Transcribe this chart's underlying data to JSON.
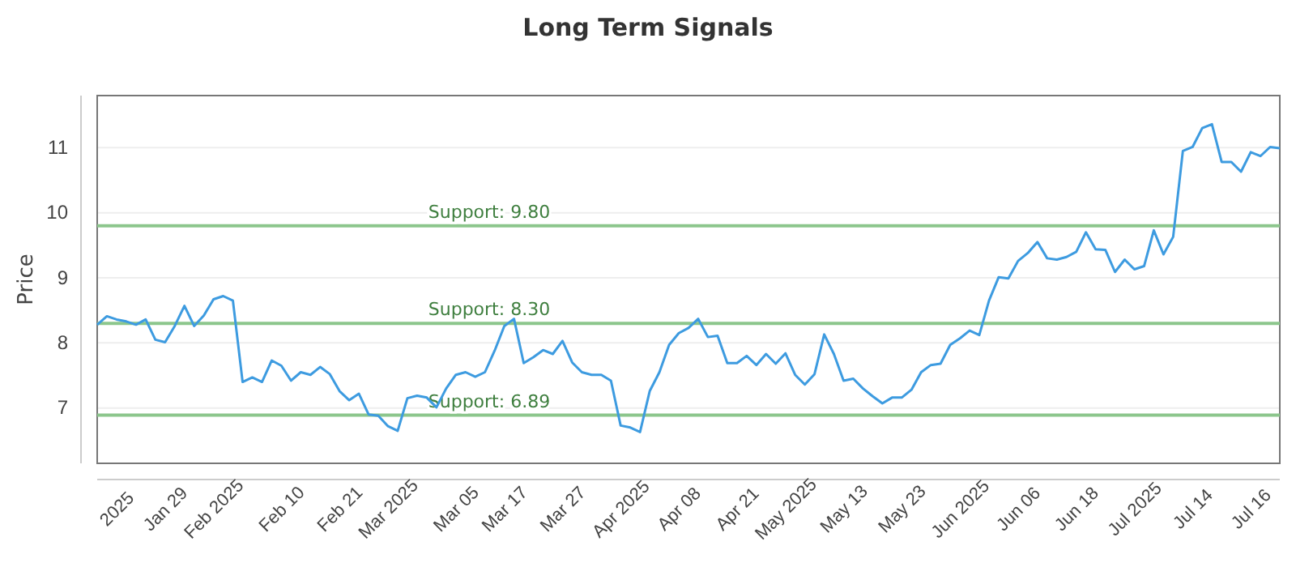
{
  "chart_data": {
    "type": "line",
    "title": "Long Term Signals",
    "ylabel": "Price",
    "categories": [
      null,
      null,
      "2025",
      null,
      null,
      null,
      null,
      "Jan 29",
      null,
      null,
      null,
      null,
      "Feb 2025",
      null,
      null,
      null,
      null,
      null,
      null,
      "Feb 10",
      null,
      null,
      null,
      null,
      null,
      "Feb 21",
      null,
      null,
      null,
      null,
      "Mar 2025",
      null,
      null,
      null,
      null,
      null,
      null,
      "Mar 05",
      null,
      null,
      null,
      null,
      "Mar 17",
      null,
      null,
      null,
      null,
      null,
      "Mar 27",
      null,
      null,
      null,
      null,
      null,
      "Apr 2025",
      null,
      null,
      null,
      null,
      null,
      "Apr 08",
      null,
      null,
      null,
      null,
      null,
      "Apr 21",
      null,
      null,
      null,
      null,
      "May 2025",
      null,
      null,
      null,
      null,
      null,
      "May 13",
      null,
      null,
      null,
      null,
      null,
      "May 23",
      null,
      null,
      null,
      null,
      null,
      "Jun 2025",
      null,
      null,
      null,
      null,
      null,
      "Jun 06",
      null,
      null,
      null,
      null,
      null,
      "Jun 18",
      null,
      null,
      null,
      null,
      null,
      "Jul 2025",
      null,
      null,
      null,
      null,
      null,
      "Jul 14",
      null,
      null,
      null,
      null,
      null,
      "Jul 16",
      null,
      null,
      null
    ],
    "series": [
      {
        "color": "#3d9be0",
        "values": [
          8.28,
          8.41,
          8.36,
          8.33,
          8.28,
          8.36,
          8.05,
          8.01,
          8.26,
          8.57,
          8.26,
          8.42,
          8.67,
          8.72,
          8.65,
          7.4,
          7.47,
          7.4,
          7.73,
          7.65,
          7.42,
          7.55,
          7.51,
          7.63,
          7.52,
          7.26,
          7.12,
          7.22,
          6.9,
          6.88,
          6.72,
          6.65,
          7.15,
          7.19,
          7.16,
          7.01,
          7.3,
          7.51,
          7.55,
          7.48,
          7.55,
          7.88,
          8.26,
          8.37,
          7.69,
          7.78,
          7.89,
          7.83,
          8.03,
          7.7,
          7.55,
          7.51,
          7.51,
          7.42,
          6.73,
          6.7,
          6.63,
          7.26,
          7.55,
          7.97,
          8.15,
          8.23,
          8.37,
          8.09,
          8.11,
          7.69,
          7.69,
          7.8,
          7.66,
          7.83,
          7.68,
          7.84,
          7.51,
          7.36,
          7.52,
          8.13,
          7.83,
          7.42,
          7.45,
          7.3,
          7.18,
          7.07,
          7.16,
          7.16,
          7.28,
          7.55,
          7.66,
          7.68,
          7.97,
          8.07,
          8.19,
          8.12,
          8.65,
          9.01,
          8.99,
          9.26,
          9.38,
          9.55,
          9.3,
          9.28,
          9.32,
          9.4,
          9.7,
          9.44,
          9.43,
          9.09,
          9.28,
          9.13,
          9.18,
          9.73,
          9.36,
          9.63,
          10.95,
          11.01,
          11.3,
          11.36,
          10.78,
          10.78,
          10.63,
          10.93,
          10.87,
          11.01,
          10.99
        ]
      }
    ],
    "ylim": [
      6.15,
      11.8
    ],
    "yticks": [
      7,
      8,
      9,
      10,
      11
    ],
    "grid": "y",
    "line_style": "solid",
    "marker": "none",
    "ref_lines": [
      {
        "axis": "y",
        "value": 9.8,
        "label": "Support: 9.80",
        "color": "#8cc68c"
      },
      {
        "axis": "y",
        "value": 8.3,
        "label": "Support: 8.30",
        "color": "#8cc68c"
      },
      {
        "axis": "y",
        "value": 6.89,
        "label": "Support: 6.89",
        "color": "#8cc68c"
      }
    ]
  }
}
